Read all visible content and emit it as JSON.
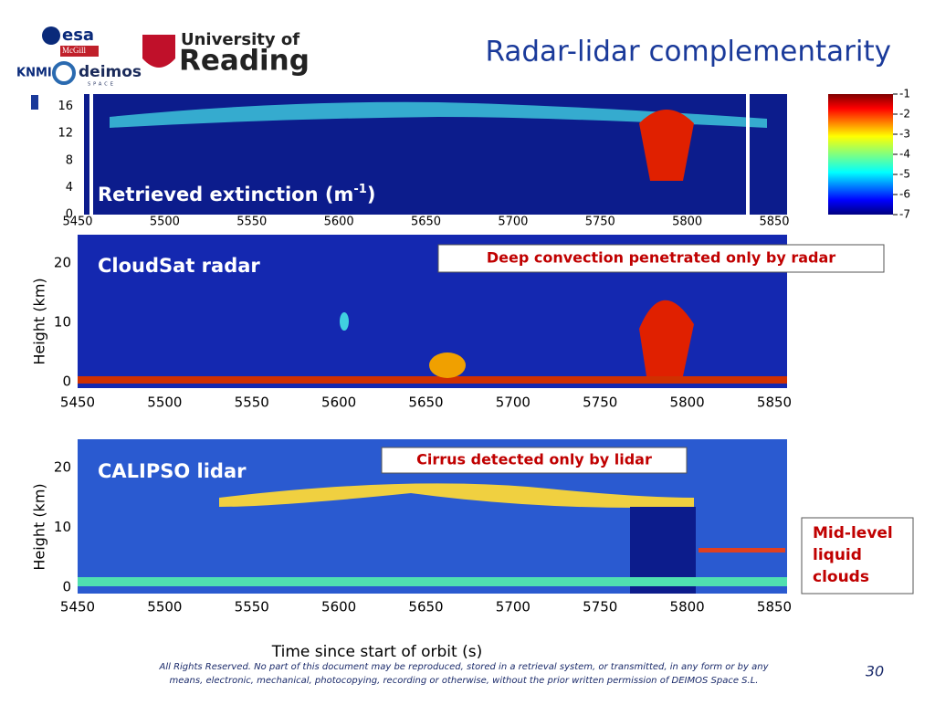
{
  "logos": {
    "esa": "esa",
    "mcgill": "McGill",
    "knmi": "KNMI",
    "deimos": "deimos",
    "deimos_sub": "SPACE",
    "university": "University of",
    "reading": "Reading"
  },
  "title": "Radar-lidar complementarity",
  "panels": [
    {
      "label": "Retrieved extinction (m",
      "label_sup": "-1",
      "label_end": ")",
      "yticks": [
        0,
        4,
        8,
        12,
        16
      ],
      "xticks": [
        5450,
        5500,
        5550,
        5600,
        5650,
        5700,
        5750,
        5800,
        5850
      ]
    },
    {
      "label": "CloudSat radar",
      "ylabel": "Height (km)",
      "yticks": [
        0,
        10,
        20
      ],
      "xticks": [
        5450,
        5500,
        5550,
        5600,
        5650,
        5700,
        5750,
        5800,
        5850
      ],
      "annotation": "Deep convection penetrated only by radar"
    },
    {
      "label": "CALIPSO lidar",
      "ylabel": "Height (km)",
      "yticks": [
        0,
        10,
        20
      ],
      "xticks": [
        5450,
        5500,
        5550,
        5600,
        5650,
        5700,
        5750,
        5800,
        5850
      ],
      "annotation": "Cirrus detected only by lidar"
    }
  ],
  "colorbar": {
    "ticks": [
      -1,
      -2,
      -3,
      -4,
      -5,
      -6,
      -7
    ]
  },
  "callout": [
    "Mid-level",
    "liquid",
    "clouds"
  ],
  "xlabel": "Time since start of orbit (s)",
  "footer": [
    "All Rights Reserved. No part of this document may be reproduced, stored in a retrieval system, or transmitted, in any form or by any",
    "means, electronic, mechanical, photocopying, recording or otherwise, without the prior written permission of DEIMOS Space S.L."
  ],
  "page_number": 30
}
